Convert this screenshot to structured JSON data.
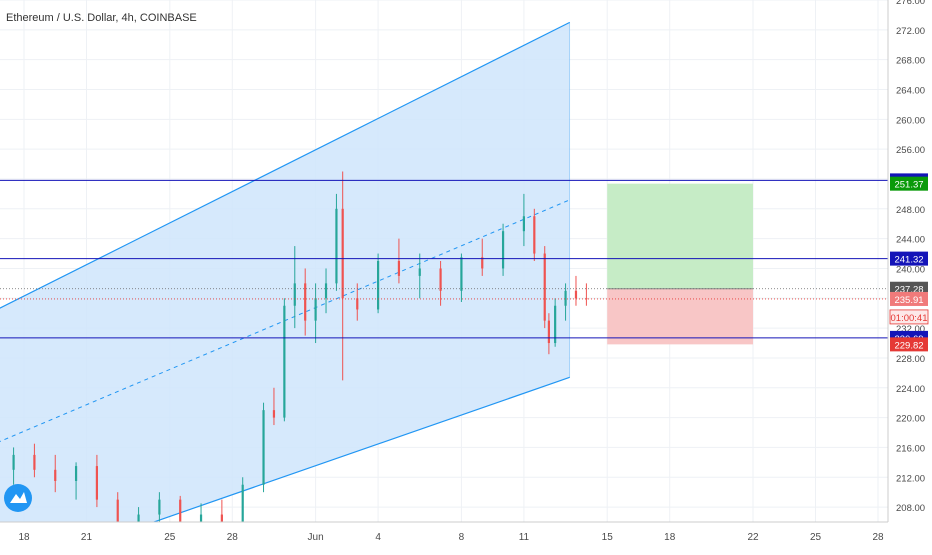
{
  "header": {
    "title": "Ethereum / U.S. Dollar, 4h, COINBASE"
  },
  "colors": {
    "grid": "#eef1f5",
    "axis_text": "#4a4a4a",
    "up": "#26a69a",
    "down": "#ef5350",
    "channel_fill": "#cfe5fb",
    "channel_line": "#2196f3",
    "level_line": "#1414b8",
    "target_fill": "#c6ecc6",
    "stop_fill": "#f8c6c6",
    "badge_blue": "#1414b8",
    "badge_green": "#0a9a0a",
    "badge_gray": "#555555",
    "badge_red": "#e53935",
    "badge_pink": "#f07a7a",
    "logo_bg": "#2196f3"
  },
  "logo_icon": "tradingview-cloud-icon",
  "chart_data": {
    "type": "candlestick",
    "title": "Ethereum / U.S. Dollar, 4h, COINBASE",
    "ylim": [
      206,
      276
    ],
    "y_ticks": [
      "276.00",
      "272.00",
      "268.00",
      "264.00",
      "260.00",
      "256.00",
      "252.00",
      "248.00",
      "244.00",
      "240.00",
      "236.00",
      "232.00",
      "228.00",
      "224.00",
      "220.00",
      "216.00",
      "212.00",
      "208.00"
    ],
    "x_ticks": [
      "18",
      "21",
      "25",
      "28",
      "Jun",
      "4",
      "8",
      "11",
      "15",
      "18",
      "22",
      "25",
      "28"
    ],
    "x_tick_days": [
      18,
      21,
      25,
      28,
      32,
      35,
      39,
      42,
      46,
      49,
      53,
      56,
      59
    ],
    "price_badges": [
      {
        "label": "251.81",
        "value": 251.81,
        "style": "blue"
      },
      {
        "label": "251.37",
        "value": 251.37,
        "style": "green"
      },
      {
        "label": "241.32",
        "value": 241.32,
        "style": "blue"
      },
      {
        "label": "237.28",
        "value": 237.28,
        "style": "gray"
      },
      {
        "label": "235.91",
        "value": 235.91,
        "style": "pink"
      },
      {
        "label": "01:00:41",
        "value": 233.5,
        "style": "pinkoutline"
      },
      {
        "label": "230.69",
        "value": 230.69,
        "style": "blue"
      },
      {
        "label": "229.82",
        "value": 229.82,
        "style": "red"
      }
    ],
    "horizontal_levels": [
      251.81,
      241.32,
      230.69
    ],
    "current_price": 235.91,
    "entry_price": 237.28,
    "channel": {
      "upper": [
        [
          16.0,
          233.5
        ],
        [
          44.2,
          273.0
        ]
      ],
      "lower": [
        [
          16.0,
          198.0
        ],
        [
          44.2,
          225.4
        ]
      ],
      "mid": [
        [
          16.0,
          215.8
        ],
        [
          44.2,
          249.2
        ]
      ]
    },
    "position": {
      "start_day": 46,
      "end_day": 53,
      "target": 251.37,
      "entry": 237.28,
      "stop": 229.82
    },
    "candles_sample": [
      [
        16.5,
        212.0,
        214.5,
        210.5,
        213.0
      ],
      [
        17.5,
        213.0,
        216.0,
        211.0,
        215.0
      ],
      [
        18.5,
        215.0,
        216.5,
        212.0,
        213.0
      ],
      [
        19.5,
        213.0,
        215.0,
        210.0,
        211.5
      ],
      [
        20.5,
        211.5,
        214.0,
        209.0,
        213.5
      ],
      [
        21.5,
        213.5,
        215.0,
        208.0,
        209.0
      ],
      [
        22.5,
        209.0,
        210.0,
        205.0,
        206.0
      ],
      [
        23.5,
        206.0,
        208.0,
        204.0,
        207.0
      ],
      [
        24.5,
        207.0,
        210.0,
        205.0,
        209.0
      ],
      [
        25.5,
        209.0,
        209.5,
        205.0,
        206.0
      ],
      [
        26.5,
        206.0,
        208.5,
        203.0,
        207.0
      ],
      [
        27.5,
        207.0,
        209.0,
        205.0,
        205.5
      ],
      [
        28.5,
        205.5,
        212.0,
        204.5,
        211.0
      ],
      [
        29.5,
        211.0,
        222.0,
        210.0,
        221.0
      ],
      [
        30.0,
        221.0,
        224.0,
        219.0,
        220.0
      ],
      [
        30.5,
        220.0,
        236.0,
        219.5,
        235.0
      ],
      [
        31.0,
        235.0,
        243.0,
        232.0,
        238.0
      ],
      [
        31.5,
        238.0,
        240.0,
        231.0,
        233.0
      ],
      [
        32.0,
        233.0,
        238.0,
        230.0,
        236.0
      ],
      [
        32.5,
        236.0,
        240.0,
        234.0,
        238.0
      ],
      [
        33.0,
        238.0,
        250.0,
        237.0,
        248.0
      ],
      [
        33.3,
        248.0,
        253.0,
        225.0,
        236.0
      ],
      [
        34.0,
        236.0,
        238.0,
        233.0,
        234.5
      ],
      [
        35.0,
        234.5,
        242.0,
        234.0,
        241.0
      ],
      [
        36.0,
        241.0,
        244.0,
        238.0,
        239.0
      ],
      [
        37.0,
        239.0,
        242.0,
        236.0,
        240.0
      ],
      [
        38.0,
        240.0,
        241.0,
        235.0,
        237.0
      ],
      [
        39.0,
        237.0,
        242.0,
        235.5,
        241.5
      ],
      [
        40.0,
        241.5,
        244.0,
        239.0,
        240.0
      ],
      [
        41.0,
        240.0,
        246.0,
        239.0,
        245.0
      ],
      [
        42.0,
        245.0,
        250.0,
        243.0,
        247.0
      ],
      [
        42.5,
        247.0,
        248.0,
        241.0,
        242.0
      ],
      [
        43.0,
        242.0,
        243.0,
        232.0,
        233.0
      ],
      [
        43.2,
        233.0,
        234.0,
        228.5,
        230.0
      ],
      [
        43.5,
        230.0,
        236.0,
        229.5,
        235.0
      ],
      [
        44.0,
        235.0,
        238.0,
        233.0,
        237.0
      ],
      [
        44.5,
        237.0,
        239.0,
        235.0,
        236.0
      ],
      [
        45.0,
        236.0,
        238.0,
        235.0,
        235.91
      ]
    ]
  }
}
